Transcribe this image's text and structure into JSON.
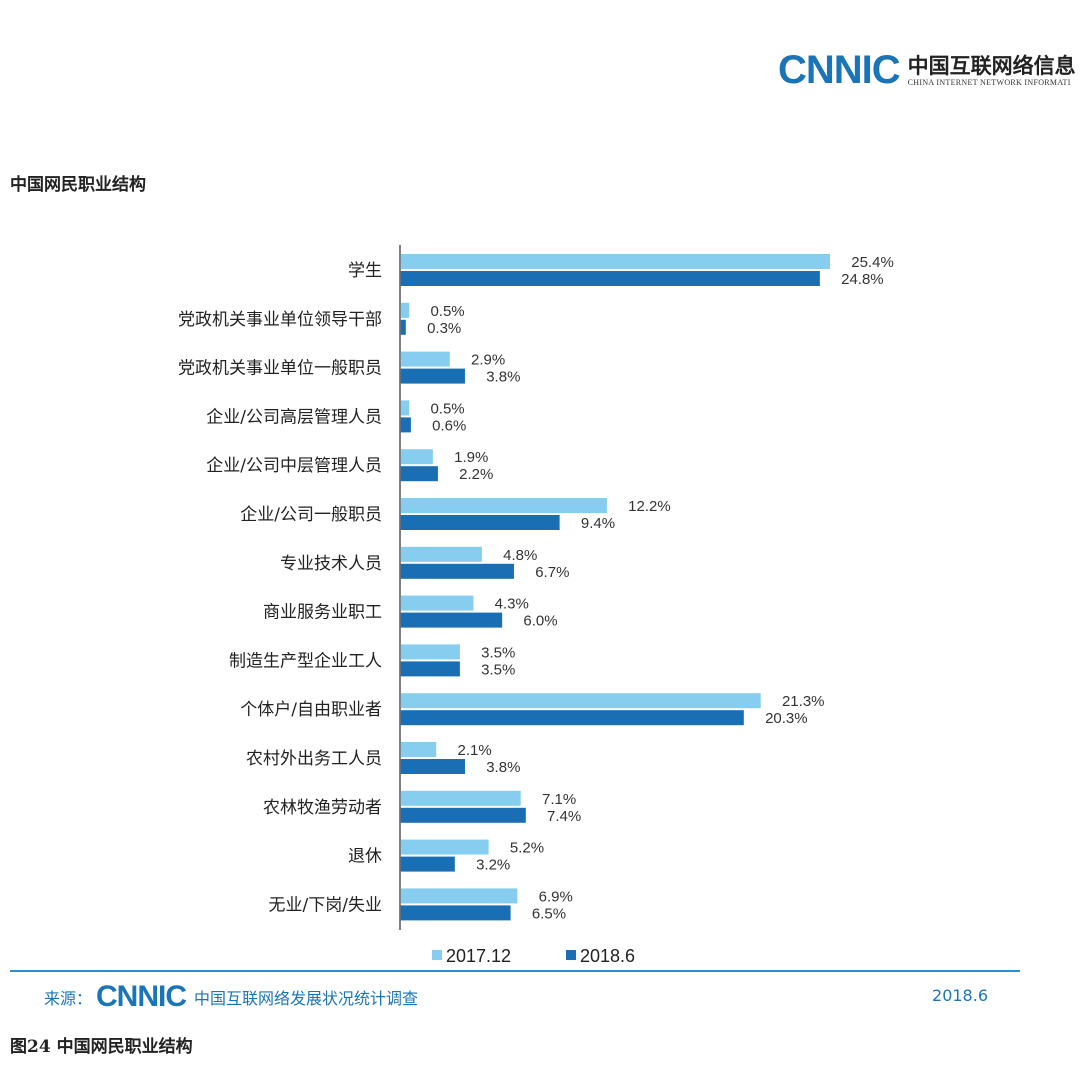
{
  "header": {
    "logo_mark": "CNNIC",
    "logo_cn": "中国互联网络信息",
    "logo_en": "CHINA INTERNET NETWORK INFORMATI"
  },
  "page_title": "中国网民职业结构",
  "colors": {
    "series_2017": "#86cdef",
    "series_2018": "#1a6fb4",
    "axis": "#555555",
    "source_blue": "#1a75b8"
  },
  "chart_data": {
    "type": "bar",
    "orientation": "horizontal",
    "categories": [
      "学生",
      "党政机关事业单位领导干部",
      "党政机关事业单位一般职员",
      "企业/公司高层管理人员",
      "企业/公司中层管理人员",
      "企业/公司一般职员",
      "专业技术人员",
      "商业服务业职工",
      "制造生产型企业工人",
      "个体户/自由职业者",
      "农村外出务工人员",
      "农林牧渔劳动者",
      "退休",
      "无业/下岗/失业"
    ],
    "series": [
      {
        "name": "2017.12",
        "values": [
          25.4,
          0.5,
          2.9,
          0.5,
          1.9,
          12.2,
          4.8,
          4.3,
          3.5,
          21.3,
          2.1,
          7.1,
          5.2,
          6.9
        ],
        "labels": [
          "25.4%",
          "0.5%",
          "2.9%",
          "0.5%",
          "1.9%",
          "12.2%",
          "4.8%",
          "4.3%",
          "3.5%",
          "21.3%",
          "2.1%",
          "7.1%",
          "5.2%",
          "6.9%"
        ]
      },
      {
        "name": "2018.6",
        "values": [
          24.8,
          0.3,
          3.8,
          0.6,
          2.2,
          9.4,
          6.7,
          6.0,
          3.5,
          20.3,
          3.8,
          7.4,
          3.2,
          6.5
        ],
        "labels": [
          "24.8%",
          "0.3%",
          "3.8%",
          "0.6%",
          "2.2%",
          "9.4%",
          "6.7%",
          "6.0%",
          "3.5%",
          "20.3%",
          "3.8%",
          "7.4%",
          "3.2%",
          "6.5%"
        ]
      }
    ],
    "unit": "%",
    "xlim": [
      0,
      30
    ],
    "legend_position": "bottom-center",
    "grid": false
  },
  "source": {
    "label": "来源：",
    "logo_mark": "CNNIC",
    "text": "中国互联网络发展状况统计调查",
    "date": "2018.6"
  },
  "caption": "图24  中国网民职业结构"
}
